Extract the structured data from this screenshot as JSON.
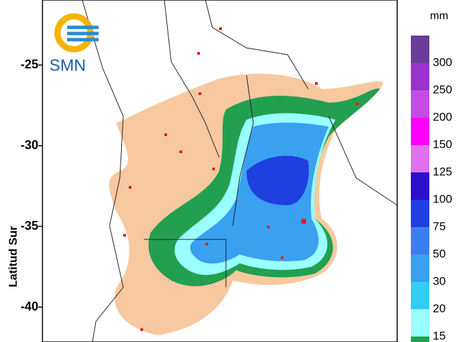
{
  "logo": "SMN",
  "y_axis": {
    "label": "Latitud Sur",
    "ticks": [
      -25,
      -30,
      -35,
      -40
    ]
  },
  "legend": {
    "unit": "mm",
    "levels": [
      {
        "value": 300,
        "color": "#6a3d9a"
      },
      {
        "value": 250,
        "color": "#9a32cd"
      },
      {
        "value": 200,
        "color": "#c64ce6"
      },
      {
        "value": 150,
        "color": "#ff00ff"
      },
      {
        "value": 125,
        "color": "#e070f0"
      },
      {
        "value": 100,
        "color": "#2b10c8"
      },
      {
        "value": 75,
        "color": "#1f3fe0"
      },
      {
        "value": 50,
        "color": "#3a7ff0"
      },
      {
        "value": 30,
        "color": "#3aa0f0"
      },
      {
        "value": 20,
        "color": "#33ccf5"
      },
      {
        "value": 15,
        "color": "#99ffff"
      }
    ]
  }
}
